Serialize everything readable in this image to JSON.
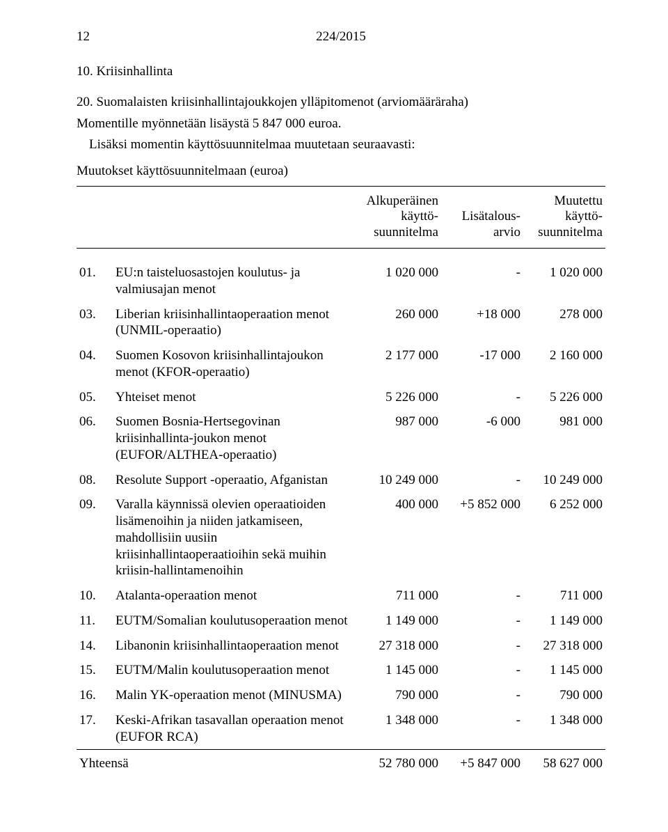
{
  "header": {
    "page_number": "12",
    "doc_ref": "224/2015"
  },
  "section": {
    "number": "10.",
    "title": "Kriisinhallinta"
  },
  "subsection": {
    "number": "20.",
    "title": "Suomalaisten kriisinhallintajoukkojen ylläpitomenot (arviomääräraha)"
  },
  "body": {
    "line1": "Momentille myönnetään lisäystä 5 847 000 euroa.",
    "line2": "Lisäksi momentin käyttösuunnitelmaa muutetaan seuraavasti:"
  },
  "table": {
    "caption": "Muutokset käyttösuunnitelmaan (euroa)",
    "columns": {
      "c1": "Alkuperäinen käyttö-suunnitelma",
      "c1_l1": "Alkuperäinen",
      "c1_l2": "käyttö-",
      "c1_l3": "suunnitelma",
      "c2_l1": "Lisätalous-",
      "c2_l2": "arvio",
      "c3_l1": "Muutettu",
      "c3_l2": "käyttö-",
      "c3_l3": "suunnitelma"
    },
    "rows": [
      {
        "num": "01.",
        "desc": "EU:n taisteluosastojen koulutus- ja valmiusajan menot",
        "orig": "1 020 000",
        "delta": "-",
        "new": "1 020 000"
      },
      {
        "num": "03.",
        "desc": "Liberian kriisinhallintaoperaation menot (UNMIL-operaatio)",
        "orig": "260 000",
        "delta": "+18 000",
        "new": "278 000"
      },
      {
        "num": "04.",
        "desc": "Suomen Kosovon kriisinhallintajoukon menot (KFOR-operaatio)",
        "orig": "2 177 000",
        "delta": "-17 000",
        "new": "2 160 000"
      },
      {
        "num": "05.",
        "desc": "Yhteiset menot",
        "orig": "5 226 000",
        "delta": "-",
        "new": "5 226 000"
      },
      {
        "num": "06.",
        "desc": "Suomen Bosnia-Hertsegovinan kriisinhallinta-joukon menot (EUFOR/ALTHEA-operaatio)",
        "orig": "987 000",
        "delta": "-6 000",
        "new": "981 000"
      },
      {
        "num": "08.",
        "desc": "Resolute Support -operaatio, Afganistan",
        "orig": "10 249 000",
        "delta": "-",
        "new": "10 249 000"
      },
      {
        "num": "09.",
        "desc": "Varalla käynnissä olevien operaatioiden lisämenoihin ja niiden jatkamiseen, mahdollisiin uusiin kriisinhallintaoperaatioihin sekä muihin kriisin-hallintamenoihin",
        "orig": "400 000",
        "delta": "+5 852 000",
        "new": "6 252 000"
      },
      {
        "num": "10.",
        "desc": "Atalanta-operaation menot",
        "orig": "711 000",
        "delta": "-",
        "new": "711 000"
      },
      {
        "num": "11.",
        "desc": "EUTM/Somalian koulutusoperaation menot",
        "orig": "1 149 000",
        "delta": "-",
        "new": "1 149 000"
      },
      {
        "num": "14.",
        "desc": "Libanonin kriisinhallintaoperaation menot",
        "orig": "27 318 000",
        "delta": "-",
        "new": "27 318 000"
      },
      {
        "num": "15.",
        "desc": "EUTM/Malin koulutusoperaation menot",
        "orig": "1 145 000",
        "delta": "-",
        "new": "1 145 000"
      },
      {
        "num": "16.",
        "desc": "Malin YK-operaation menot (MINUSMA)",
        "orig": "790 000",
        "delta": "-",
        "new": "790 000"
      },
      {
        "num": "17.",
        "desc": "Keski-Afrikan tasavallan operaation menot (EUFOR RCA)",
        "orig": "1 348 000",
        "delta": "-",
        "new": "1 348 000"
      }
    ],
    "total": {
      "label": "Yhteensä",
      "orig": "52 780 000",
      "delta": "+5 847 000",
      "new": "58 627 000"
    }
  }
}
